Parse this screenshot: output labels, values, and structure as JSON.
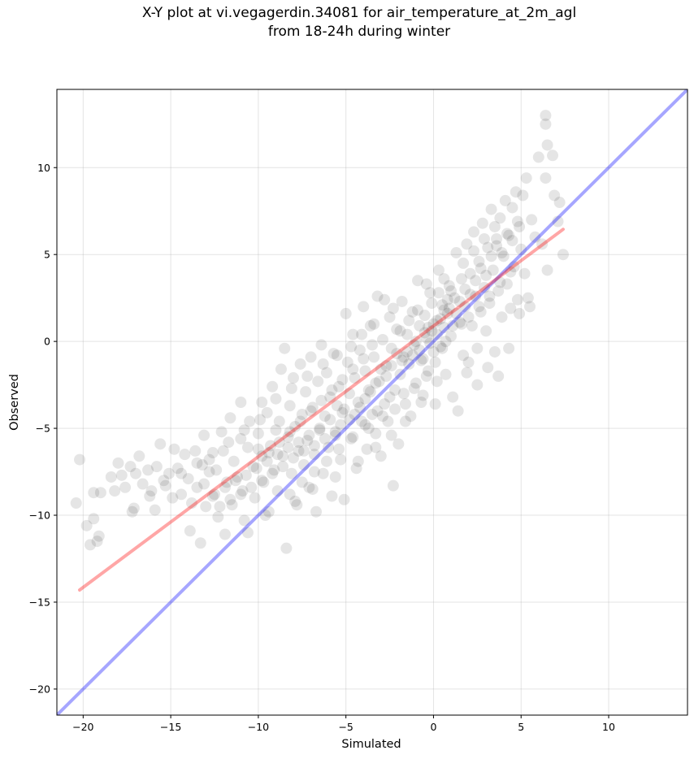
{
  "title_line1": "X-Y plot at vi.vegagerdin.34081 for air_temperature_at_2m_agl",
  "title_line2": "from 18-24h during winter",
  "chart_data": {
    "type": "scatter",
    "title": "X-Y plot at vi.vegagerdin.34081 for air_temperature_at_2m_agl from 18-24h during winter",
    "xlabel": "Simulated",
    "ylabel": "Observed",
    "xlim": [
      -21.5,
      14.5
    ],
    "ylim": [
      -21.5,
      14.5
    ],
    "xticks": [
      -20,
      -15,
      -10,
      -5,
      0,
      5,
      10
    ],
    "yticks": [
      -20,
      -15,
      -10,
      -5,
      0,
      5,
      10
    ],
    "xtick_labels": [
      "−20",
      "−15",
      "−10",
      "−5",
      "0",
      "5",
      "10"
    ],
    "ytick_labels": [
      "−20",
      "−15",
      "−10",
      "−5",
      "0",
      "5",
      "10"
    ],
    "grid": true,
    "point_color": "#000000",
    "point_opacity": 0.1,
    "identity_line": {
      "x": [
        -21.5,
        14.5
      ],
      "y": [
        -21.5,
        14.5
      ],
      "color": "#0000ff",
      "opacity": 0.35
    },
    "fit_line": {
      "x": [
        -20.2,
        7.4
      ],
      "y": [
        -14.3,
        6.45
      ],
      "color": "#ff0000",
      "opacity": 0.35
    },
    "points": [
      [
        -20.4,
        -9.3
      ],
      [
        -20.2,
        -6.8
      ],
      [
        -19.8,
        -10.6
      ],
      [
        -19.6,
        -11.7
      ],
      [
        -19.4,
        -8.7
      ],
      [
        -19.4,
        -10.2
      ],
      [
        -19.2,
        -11.5
      ],
      [
        -19.1,
        -11.2
      ],
      [
        -19.0,
        -8.7
      ],
      [
        -18.4,
        -7.8
      ],
      [
        -18.2,
        -8.6
      ],
      [
        -18.0,
        -7.0
      ],
      [
        -17.8,
        -7.7
      ],
      [
        -17.6,
        -8.4
      ],
      [
        -17.3,
        -7.2
      ],
      [
        -17.2,
        -9.8
      ],
      [
        -17.0,
        -7.6
      ],
      [
        -16.8,
        -6.6
      ],
      [
        -16.6,
        -8.2
      ],
      [
        -16.3,
        -7.4
      ],
      [
        -16.1,
        -8.6
      ],
      [
        -15.9,
        -9.7
      ],
      [
        -15.8,
        -7.2
      ],
      [
        -15.6,
        -5.9
      ],
      [
        -15.4,
        -8.0
      ],
      [
        -15.1,
        -7.6
      ],
      [
        -14.9,
        -9.0
      ],
      [
        -14.8,
        -6.2
      ],
      [
        -14.6,
        -7.3
      ],
      [
        -14.4,
        -8.8
      ],
      [
        -14.2,
        -6.5
      ],
      [
        -14.0,
        -7.9
      ],
      [
        -13.9,
        -10.9
      ],
      [
        -13.8,
        -9.3
      ],
      [
        -13.6,
        -6.3
      ],
      [
        -13.5,
        -8.4
      ],
      [
        -13.3,
        -11.6
      ],
      [
        -13.2,
        -7.1
      ],
      [
        -13.1,
        -5.4
      ],
      [
        -13.0,
        -9.5
      ],
      [
        -12.8,
        -6.8
      ],
      [
        -12.6,
        -8.9
      ],
      [
        -12.4,
        -7.4
      ],
      [
        -12.3,
        -10.1
      ],
      [
        -12.1,
        -5.2
      ],
      [
        -12.0,
        -6.3
      ],
      [
        -11.9,
        -11.1
      ],
      [
        -11.8,
        -8.1
      ],
      [
        -11.6,
        -4.4
      ],
      [
        -11.5,
        -9.4
      ],
      [
        -11.4,
        -6.9
      ],
      [
        -11.2,
        -7.8
      ],
      [
        -11.0,
        -5.6
      ],
      [
        -11.0,
        -3.5
      ],
      [
        -10.9,
        -8.6
      ],
      [
        -10.8,
        -10.3
      ],
      [
        -10.6,
        -6.1
      ],
      [
        -10.5,
        -4.6
      ],
      [
        -10.3,
        -7.2
      ],
      [
        -10.2,
        -9.0
      ],
      [
        -10.0,
        -5.3
      ],
      [
        -9.8,
        -6.6
      ],
      [
        -9.8,
        -3.5
      ],
      [
        -9.7,
        -8.1
      ],
      [
        -9.5,
        -4.1
      ],
      [
        -9.4,
        -9.8
      ],
      [
        -9.3,
        -6.0
      ],
      [
        -9.2,
        -2.6
      ],
      [
        -9.1,
        -7.4
      ],
      [
        -9.0,
        -5.1
      ],
      [
        -8.9,
        -8.6
      ],
      [
        -8.8,
        -4.6
      ],
      [
        -8.7,
        -1.6
      ],
      [
        -8.6,
        -6.6
      ],
      [
        -8.5,
        -0.4
      ],
      [
        -8.4,
        -11.9
      ],
      [
        -8.3,
        -5.5
      ],
      [
        -8.2,
        -3.7
      ],
      [
        -8.1,
        -7.6
      ],
      [
        -8.0,
        -2.1
      ],
      [
        -7.9,
        -4.9
      ],
      [
        -7.8,
        -9.4
      ],
      [
        -7.7,
        -6.3
      ],
      [
        -7.6,
        -1.3
      ],
      [
        -7.5,
        -4.2
      ],
      [
        -7.4,
        -7.1
      ],
      [
        -7.3,
        -2.9
      ],
      [
        -7.2,
        -5.7
      ],
      [
        -7.1,
        -8.4
      ],
      [
        -7.0,
        -0.9
      ],
      [
        -6.9,
        -3.8
      ],
      [
        -6.8,
        -6.5
      ],
      [
        -6.7,
        -9.8
      ],
      [
        -6.6,
        -2.3
      ],
      [
        -6.5,
        -5.0
      ],
      [
        -6.4,
        -0.2
      ],
      [
        -6.3,
        -7.6
      ],
      [
        -6.2,
        -4.3
      ],
      [
        -6.1,
        -1.8
      ],
      [
        -6.0,
        -6.1
      ],
      [
        -5.9,
        -3.2
      ],
      [
        -5.8,
        -8.9
      ],
      [
        -5.7,
        -0.7
      ],
      [
        -5.6,
        -5.4
      ],
      [
        -5.5,
        -3.7
      ],
      [
        -5.4,
        -2.6
      ],
      [
        -5.3,
        -6.8
      ],
      [
        -5.2,
        -4.1
      ],
      [
        -5.1,
        -9.1
      ],
      [
        -5.0,
        1.6
      ],
      [
        -4.9,
        -1.2
      ],
      [
        -4.8,
        -3.0
      ],
      [
        -4.7,
        -5.6
      ],
      [
        -4.6,
        0.4
      ],
      [
        -4.5,
        -2.1
      ],
      [
        -4.4,
        -7.3
      ],
      [
        -4.3,
        -3.5
      ],
      [
        -4.2,
        -0.5
      ],
      [
        -4.1,
        -4.6
      ],
      [
        -4.0,
        2.0
      ],
      [
        -3.9,
        -1.7
      ],
      [
        -3.8,
        -6.2
      ],
      [
        -3.7,
        -2.8
      ],
      [
        -3.6,
        0.9
      ],
      [
        -3.5,
        -4.2
      ],
      [
        -3.4,
        -0.9
      ],
      [
        -3.3,
        -5.3
      ],
      [
        -3.2,
        2.6
      ],
      [
        -3.1,
        -2.3
      ],
      [
        -3.0,
        -6.6
      ],
      [
        -2.9,
        0.1
      ],
      [
        -2.8,
        -3.6
      ],
      [
        -2.7,
        -1.4
      ],
      [
        -2.6,
        -4.6
      ],
      [
        -2.5,
        1.4
      ],
      [
        -2.4,
        -0.4
      ],
      [
        -2.3,
        -8.3
      ],
      [
        -2.2,
        -2.8
      ],
      [
        -2.1,
        0.7
      ],
      [
        -2.0,
        -5.9
      ],
      [
        -1.9,
        -1.9
      ],
      [
        -1.8,
        2.3
      ],
      [
        -1.7,
        -0.9
      ],
      [
        -1.6,
        -3.6
      ],
      [
        -1.5,
        0.4
      ],
      [
        -1.4,
        -1.3
      ],
      [
        -1.3,
        -4.3
      ],
      [
        -1.2,
        1.7
      ],
      [
        -1.1,
        -0.2
      ],
      [
        -1.0,
        -2.4
      ],
      [
        -0.9,
        3.5
      ],
      [
        -0.8,
        0.9
      ],
      [
        -0.7,
        -1.1
      ],
      [
        -0.6,
        -3.1
      ],
      [
        -0.5,
        1.5
      ],
      [
        -0.4,
        0.2
      ],
      [
        -0.3,
        -1.7
      ],
      [
        -0.2,
        2.8
      ],
      [
        -0.1,
        0.6
      ],
      [
        0.0,
        -0.6
      ],
      [
        0.1,
        -3.6
      ],
      [
        0.2,
        1.2
      ],
      [
        0.3,
        4.1
      ],
      [
        0.4,
        -0.3
      ],
      [
        0.5,
        2.1
      ],
      [
        0.6,
        0.8
      ],
      [
        0.7,
        -1.9
      ],
      [
        0.8,
        1.6
      ],
      [
        0.9,
        3.2
      ],
      [
        1.0,
        0.3
      ],
      [
        1.1,
        -3.2
      ],
      [
        1.2,
        2.5
      ],
      [
        1.3,
        5.1
      ],
      [
        1.4,
        -4.0
      ],
      [
        1.5,
        1.1
      ],
      [
        1.6,
        3.6
      ],
      [
        1.7,
        -0.8
      ],
      [
        1.8,
        2.0
      ],
      [
        1.9,
        5.6
      ],
      [
        2.0,
        -1.2
      ],
      [
        2.1,
        3.9
      ],
      [
        2.2,
        0.9
      ],
      [
        2.3,
        6.3
      ],
      [
        2.4,
        2.6
      ],
      [
        2.5,
        -0.4
      ],
      [
        2.6,
        4.6
      ],
      [
        2.7,
        1.7
      ],
      [
        2.8,
        6.8
      ],
      [
        2.9,
        3.1
      ],
      [
        3.0,
        0.6
      ],
      [
        3.1,
        5.4
      ],
      [
        3.2,
        2.2
      ],
      [
        3.3,
        7.6
      ],
      [
        3.4,
        4.1
      ],
      [
        3.5,
        -0.6
      ],
      [
        3.6,
        5.9
      ],
      [
        3.7,
        2.9
      ],
      [
        3.8,
        7.1
      ],
      [
        3.9,
        1.4
      ],
      [
        4.0,
        4.9
      ],
      [
        4.1,
        8.1
      ],
      [
        4.2,
        3.3
      ],
      [
        4.3,
        6.1
      ],
      [
        4.4,
        1.9
      ],
      [
        4.5,
        7.7
      ],
      [
        4.6,
        4.3
      ],
      [
        4.7,
        8.6
      ],
      [
        4.8,
        2.4
      ],
      [
        4.9,
        6.6
      ],
      [
        5.0,
        5.3
      ],
      [
        5.1,
        8.4
      ],
      [
        5.2,
        3.9
      ],
      [
        5.3,
        9.4
      ],
      [
        5.5,
        2.0
      ],
      [
        5.6,
        7.0
      ],
      [
        5.8,
        6.0
      ],
      [
        6.0,
        10.6
      ],
      [
        6.2,
        5.6
      ],
      [
        6.4,
        13.0
      ],
      [
        6.4,
        12.5
      ],
      [
        6.4,
        9.4
      ],
      [
        6.5,
        11.3
      ],
      [
        6.5,
        4.1
      ],
      [
        6.8,
        10.7
      ],
      [
        6.9,
        8.4
      ],
      [
        7.1,
        6.9
      ],
      [
        7.2,
        8.0
      ],
      [
        7.4,
        5.0
      ],
      [
        -0.5,
        0.5
      ],
      [
        -0.3,
        0.8
      ],
      [
        0.0,
        1.0
      ],
      [
        0.2,
        0.4
      ],
      [
        0.4,
        1.3
      ],
      [
        0.6,
        1.8
      ],
      [
        0.8,
        2.4
      ],
      [
        1.0,
        2.9
      ],
      [
        0.5,
        -0.4
      ],
      [
        -0.2,
        -0.1
      ],
      [
        -0.8,
        -0.5
      ],
      [
        -1.0,
        0.0
      ],
      [
        -1.2,
        -0.8
      ],
      [
        -0.6,
        -1.0
      ],
      [
        0.1,
        -1.2
      ],
      [
        0.7,
        0.0
      ],
      [
        1.1,
        0.9
      ],
      [
        1.3,
        1.6
      ],
      [
        -1.5,
        -0.6
      ],
      [
        -1.8,
        -1.1
      ],
      [
        -2.1,
        -0.7
      ],
      [
        -2.4,
        -1.4
      ],
      [
        -2.7,
        -2.0
      ],
      [
        -3.0,
        -1.6
      ],
      [
        -3.3,
        -2.4
      ],
      [
        -3.6,
        -2.9
      ],
      [
        -3.9,
        -3.3
      ],
      [
        -4.2,
        -3.8
      ],
      [
        -4.5,
        -4.2
      ],
      [
        -4.8,
        -4.5
      ],
      [
        -5.1,
        -3.9
      ],
      [
        -5.3,
        -4.8
      ],
      [
        -5.6,
        -5.2
      ],
      [
        -5.9,
        -4.5
      ],
      [
        -6.2,
        -5.6
      ],
      [
        -6.5,
        -5.1
      ],
      [
        -6.8,
        -6.0
      ],
      [
        -7.1,
        -5.4
      ],
      [
        -7.4,
        -6.3
      ],
      [
        -7.7,
        -5.8
      ],
      [
        -8.0,
        -6.7
      ],
      [
        -8.3,
        -6.1
      ],
      [
        -8.6,
        -7.2
      ],
      [
        -8.9,
        -6.5
      ],
      [
        -9.2,
        -7.6
      ],
      [
        -9.5,
        -6.9
      ],
      [
        -9.8,
        -8.0
      ],
      [
        -10.1,
        -7.3
      ],
      [
        -10.4,
        -8.4
      ],
      [
        -10.7,
        -7.7
      ],
      [
        -11.0,
        -8.8
      ],
      [
        -11.3,
        -8.0
      ],
      [
        -11.6,
        -9.1
      ],
      [
        -11.9,
        -8.4
      ],
      [
        -12.2,
        -9.5
      ],
      [
        -12.5,
        -8.8
      ],
      [
        -12.8,
        -7.5
      ],
      [
        -13.1,
        -8.2
      ],
      [
        1.5,
        2.3
      ],
      [
        1.8,
        3.0
      ],
      [
        2.1,
        2.7
      ],
      [
        2.4,
        3.5
      ],
      [
        2.7,
        4.2
      ],
      [
        3.0,
        3.8
      ],
      [
        3.3,
        4.9
      ],
      [
        3.6,
        5.5
      ],
      [
        3.9,
        5.1
      ],
      [
        4.2,
        6.2
      ],
      [
        4.5,
        5.8
      ],
      [
        4.8,
        6.9
      ],
      [
        2.0,
        1.4
      ],
      [
        2.6,
        2.0
      ],
      [
        3.2,
        2.6
      ],
      [
        3.8,
        3.4
      ],
      [
        4.4,
        4.0
      ],
      [
        -3.5,
        -0.2
      ],
      [
        -4.0,
        -1.0
      ],
      [
        -4.6,
        -1.6
      ],
      [
        -5.2,
        -2.2
      ],
      [
        -5.8,
        -2.8
      ],
      [
        -6.4,
        -3.4
      ],
      [
        -7.0,
        -4.0
      ],
      [
        -7.6,
        -4.6
      ],
      [
        -8.2,
        -5.2
      ],
      [
        -8.8,
        -5.8
      ],
      [
        -9.4,
        -6.4
      ],
      [
        -10.0,
        -6.2
      ],
      [
        -2.5,
        -3.2
      ],
      [
        -3.2,
        -4.0
      ],
      [
        -3.9,
        -4.8
      ],
      [
        -4.6,
        -5.5
      ],
      [
        -5.4,
        -6.2
      ],
      [
        -6.1,
        -6.9
      ],
      [
        -6.8,
        -7.5
      ],
      [
        -7.5,
        -8.1
      ],
      [
        -8.2,
        -8.8
      ],
      [
        -0.9,
        1.8
      ],
      [
        -1.4,
        1.2
      ],
      [
        -1.9,
        0.6
      ],
      [
        -2.3,
        1.9
      ],
      [
        -2.8,
        2.4
      ],
      [
        -3.4,
        1.0
      ],
      [
        -4.1,
        0.4
      ],
      [
        -4.7,
        -0.3
      ],
      [
        -5.5,
        -0.8
      ],
      [
        -6.3,
        -1.3
      ],
      [
        -7.2,
        -2.0
      ],
      [
        -8.1,
        -2.7
      ],
      [
        -9.0,
        -3.3
      ],
      [
        -9.9,
        -4.5
      ],
      [
        -10.8,
        -5.1
      ],
      [
        -11.7,
        -5.8
      ],
      [
        -12.6,
        -6.4
      ],
      [
        -13.5,
        -7.0
      ],
      [
        -14.4,
        -7.6
      ],
      [
        -15.3,
        -8.3
      ],
      [
        -16.2,
        -8.9
      ],
      [
        -17.1,
        -9.6
      ],
      [
        1.9,
        -1.8
      ],
      [
        2.5,
        -2.5
      ],
      [
        3.1,
        -1.5
      ],
      [
        3.7,
        -2.0
      ],
      [
        4.3,
        -0.4
      ],
      [
        4.9,
        1.6
      ],
      [
        5.4,
        2.5
      ],
      [
        -0.7,
        -3.5
      ],
      [
        -1.6,
        -4.6
      ],
      [
        -2.4,
        -5.4
      ],
      [
        -3.3,
        -6.1
      ],
      [
        -4.3,
        -6.9
      ],
      [
        -5.6,
        -7.8
      ],
      [
        -6.9,
        -8.5
      ],
      [
        -7.9,
        -9.2
      ],
      [
        -9.6,
        -10.0
      ],
      [
        -10.6,
        -11.0
      ],
      [
        0.3,
        2.8
      ],
      [
        0.6,
        3.6
      ],
      [
        -0.4,
        3.3
      ],
      [
        1.7,
        4.5
      ],
      [
        2.3,
        5.2
      ],
      [
        2.9,
        5.9
      ],
      [
        3.5,
        6.6
      ],
      [
        -0.1,
        2.2
      ],
      [
        0.9,
        1.9
      ],
      [
        1.6,
        1.0
      ],
      [
        0.2,
        -2.3
      ],
      [
        -0.4,
        -2.0
      ],
      [
        -1.1,
        -2.7
      ],
      [
        -1.7,
        -3.0
      ],
      [
        -2.2,
        -3.9
      ],
      [
        -2.9,
        -4.3
      ],
      [
        -3.7,
        -5.0
      ]
    ]
  }
}
